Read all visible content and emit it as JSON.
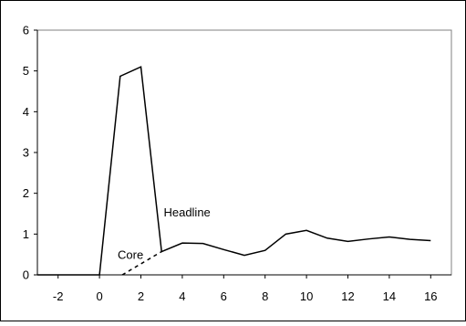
{
  "chart_data": {
    "type": "line",
    "title": "",
    "xlabel": "",
    "ylabel": "",
    "xlim": [
      -3,
      17
    ],
    "ylim": [
      0,
      6
    ],
    "x_ticks": [
      -2,
      0,
      2,
      4,
      6,
      8,
      10,
      12,
      14,
      16
    ],
    "y_ticks": [
      0,
      1,
      2,
      3,
      4,
      5,
      6
    ],
    "grid": false,
    "legend": "none",
    "series": [
      {
        "name": "Headline",
        "style": "solid",
        "color": "#000000",
        "points": [
          [
            -3,
            0
          ],
          [
            -2,
            0
          ],
          [
            -1,
            0
          ],
          [
            0,
            0
          ],
          [
            1,
            4.87
          ],
          [
            2,
            5.1
          ],
          [
            3,
            0.57
          ],
          [
            4,
            0.78
          ],
          [
            5,
            0.77
          ],
          [
            6,
            0.62
          ],
          [
            7,
            0.48
          ],
          [
            8,
            0.6
          ],
          [
            9,
            1.0
          ],
          [
            10,
            1.09
          ],
          [
            11,
            0.9
          ],
          [
            12,
            0.82
          ],
          [
            13,
            0.88
          ],
          [
            14,
            0.93
          ],
          [
            15,
            0.87
          ],
          [
            16,
            0.84
          ]
        ]
      },
      {
        "name": "Core",
        "style": "dashed",
        "color": "#000000",
        "points": [
          [
            1.1,
            0
          ],
          [
            3,
            0.57
          ]
        ]
      }
    ],
    "annotations": [
      {
        "text": "Headline",
        "x": 3.1,
        "y": 1.55,
        "anchor": "start"
      },
      {
        "text": "Core",
        "x": 1.5,
        "y": 0.5,
        "anchor": "middle"
      }
    ]
  }
}
